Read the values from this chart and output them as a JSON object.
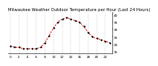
{
  "title": "Milwaukee Weather Outdoor Temperature per Hour (Last 24 Hours)",
  "hours": [
    0,
    1,
    2,
    3,
    4,
    5,
    6,
    7,
    8,
    9,
    10,
    11,
    12,
    13,
    14,
    15,
    16,
    17,
    18,
    19,
    20,
    21,
    22,
    23
  ],
  "temps": [
    19,
    18,
    18,
    17,
    17,
    17,
    17,
    18,
    21,
    26,
    31,
    35,
    37,
    38,
    37,
    36,
    35,
    32,
    28,
    25,
    24,
    23,
    22,
    21
  ],
  "line_color": "#cc0000",
  "marker_color": "#000000",
  "bg_color": "#ffffff",
  "grid_color": "#888888",
  "text_color": "#000000",
  "ylim_min": 14,
  "ylim_max": 42,
  "yticks": [
    15,
    20,
    25,
    30,
    35,
    40
  ],
  "xtick_step": 2,
  "title_fontsize": 3.8,
  "tick_fontsize": 3.0,
  "line_width": 0.7,
  "marker_size": 1.2,
  "dpi": 100
}
